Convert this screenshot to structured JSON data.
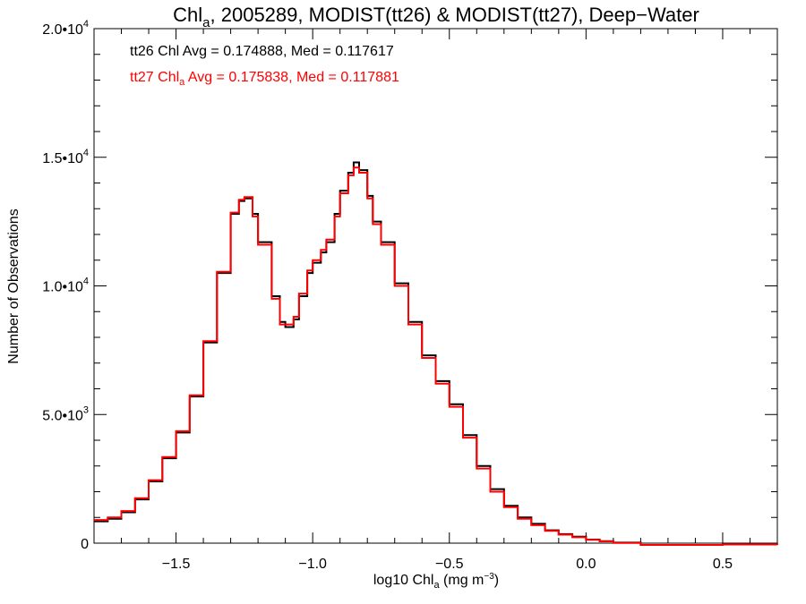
{
  "chart_data": {
    "type": "line",
    "title_main": "Chl",
    "title_sub": "a",
    "title_rest": ", 2005289, MODIST(tt26) & MODIST(tt27), Deep−Water",
    "xlabel_main": "log10 Chl",
    "xlabel_sub": "a",
    "xlabel_unit": " (mg m",
    "xlabel_sup": "−3",
    "xlabel_end": ")",
    "ylabel": "Number of Observations",
    "xlim": [
      -1.8,
      0.7
    ],
    "ylim": [
      0,
      20000
    ],
    "xticks": [
      {
        "value": -1.5,
        "label": "−1.5"
      },
      {
        "value": -1.0,
        "label": "−1.0"
      },
      {
        "value": -0.5,
        "label": "−0.5"
      },
      {
        "value": 0.0,
        "label": "0.0"
      },
      {
        "value": 0.5,
        "label": "0.5"
      }
    ],
    "yticks": [
      {
        "value": 0,
        "label": "0",
        "exp": ""
      },
      {
        "value": 5000,
        "label": "5.0•10",
        "exp": "3"
      },
      {
        "value": 10000,
        "label": "1.0•10",
        "exp": "4"
      },
      {
        "value": 15000,
        "label": "1.5•10",
        "exp": "4"
      },
      {
        "value": 20000,
        "label": "2.0•10",
        "exp": "4"
      }
    ],
    "annotations": [
      {
        "color": "#000000",
        "pre": "tt26 Chl",
        "sub": "",
        "post": " Avg = 0.174888, Med = 0.117617"
      },
      {
        "color": "#ff0000",
        "pre": "tt27 Chl",
        "sub": "a",
        "post": " Avg = 0.175838, Med = 0.117881"
      }
    ],
    "series": [
      {
        "name": "tt26",
        "color": "#000000",
        "x": [
          -1.8,
          -1.75,
          -1.7,
          -1.65,
          -1.6,
          -1.55,
          -1.5,
          -1.45,
          -1.4,
          -1.35,
          -1.3,
          -1.27,
          -1.25,
          -1.22,
          -1.2,
          -1.15,
          -1.12,
          -1.1,
          -1.07,
          -1.05,
          -1.02,
          -1.0,
          -0.97,
          -0.95,
          -0.92,
          -0.9,
          -0.87,
          -0.85,
          -0.83,
          -0.8,
          -0.78,
          -0.75,
          -0.7,
          -0.65,
          -0.6,
          -0.55,
          -0.5,
          -0.45,
          -0.4,
          -0.35,
          -0.3,
          -0.25,
          -0.2,
          -0.15,
          -0.1,
          -0.05,
          0.0,
          0.05,
          0.1,
          0.2,
          0.3,
          0.4,
          0.5,
          0.6,
          0.7
        ],
        "values": [
          850,
          950,
          1200,
          1700,
          2400,
          3300,
          4300,
          5700,
          7800,
          10500,
          12800,
          13300,
          13400,
          12800,
          11700,
          9600,
          8600,
          8400,
          8700,
          9600,
          10500,
          10900,
          11300,
          11700,
          12800,
          13700,
          14400,
          14800,
          14500,
          13500,
          12500,
          11700,
          10100,
          8600,
          7300,
          6300,
          5400,
          4200,
          3000,
          2100,
          1450,
          1000,
          750,
          500,
          350,
          250,
          140,
          80,
          20,
          -200,
          -300,
          -150,
          -50,
          -50,
          -100
        ]
      },
      {
        "name": "tt27",
        "color": "#ff0000",
        "x": [
          -1.8,
          -1.75,
          -1.7,
          -1.65,
          -1.6,
          -1.55,
          -1.5,
          -1.45,
          -1.4,
          -1.35,
          -1.3,
          -1.27,
          -1.25,
          -1.22,
          -1.2,
          -1.15,
          -1.12,
          -1.1,
          -1.07,
          -1.05,
          -1.02,
          -1.0,
          -0.97,
          -0.95,
          -0.92,
          -0.9,
          -0.87,
          -0.85,
          -0.83,
          -0.8,
          -0.78,
          -0.75,
          -0.7,
          -0.65,
          -0.6,
          -0.55,
          -0.5,
          -0.45,
          -0.4,
          -0.35,
          -0.3,
          -0.25,
          -0.2,
          -0.15,
          -0.1,
          -0.05,
          0.0,
          0.05,
          0.1,
          0.2,
          0.3,
          0.4,
          0.5,
          0.6,
          0.7
        ],
        "values": [
          900,
          1000,
          1250,
          1750,
          2450,
          3350,
          4350,
          5750,
          7850,
          10550,
          12850,
          13350,
          13450,
          12700,
          11600,
          9500,
          8500,
          8500,
          8800,
          9700,
          10600,
          11000,
          11400,
          11800,
          12700,
          13600,
          14300,
          14600,
          14400,
          13400,
          12400,
          11600,
          10000,
          8500,
          7200,
          6200,
          5300,
          4100,
          2900,
          2000,
          1400,
          950,
          700,
          480,
          330,
          230,
          130,
          70,
          10,
          -200,
          -300,
          -150,
          -50,
          -50,
          -100
        ]
      }
    ]
  }
}
